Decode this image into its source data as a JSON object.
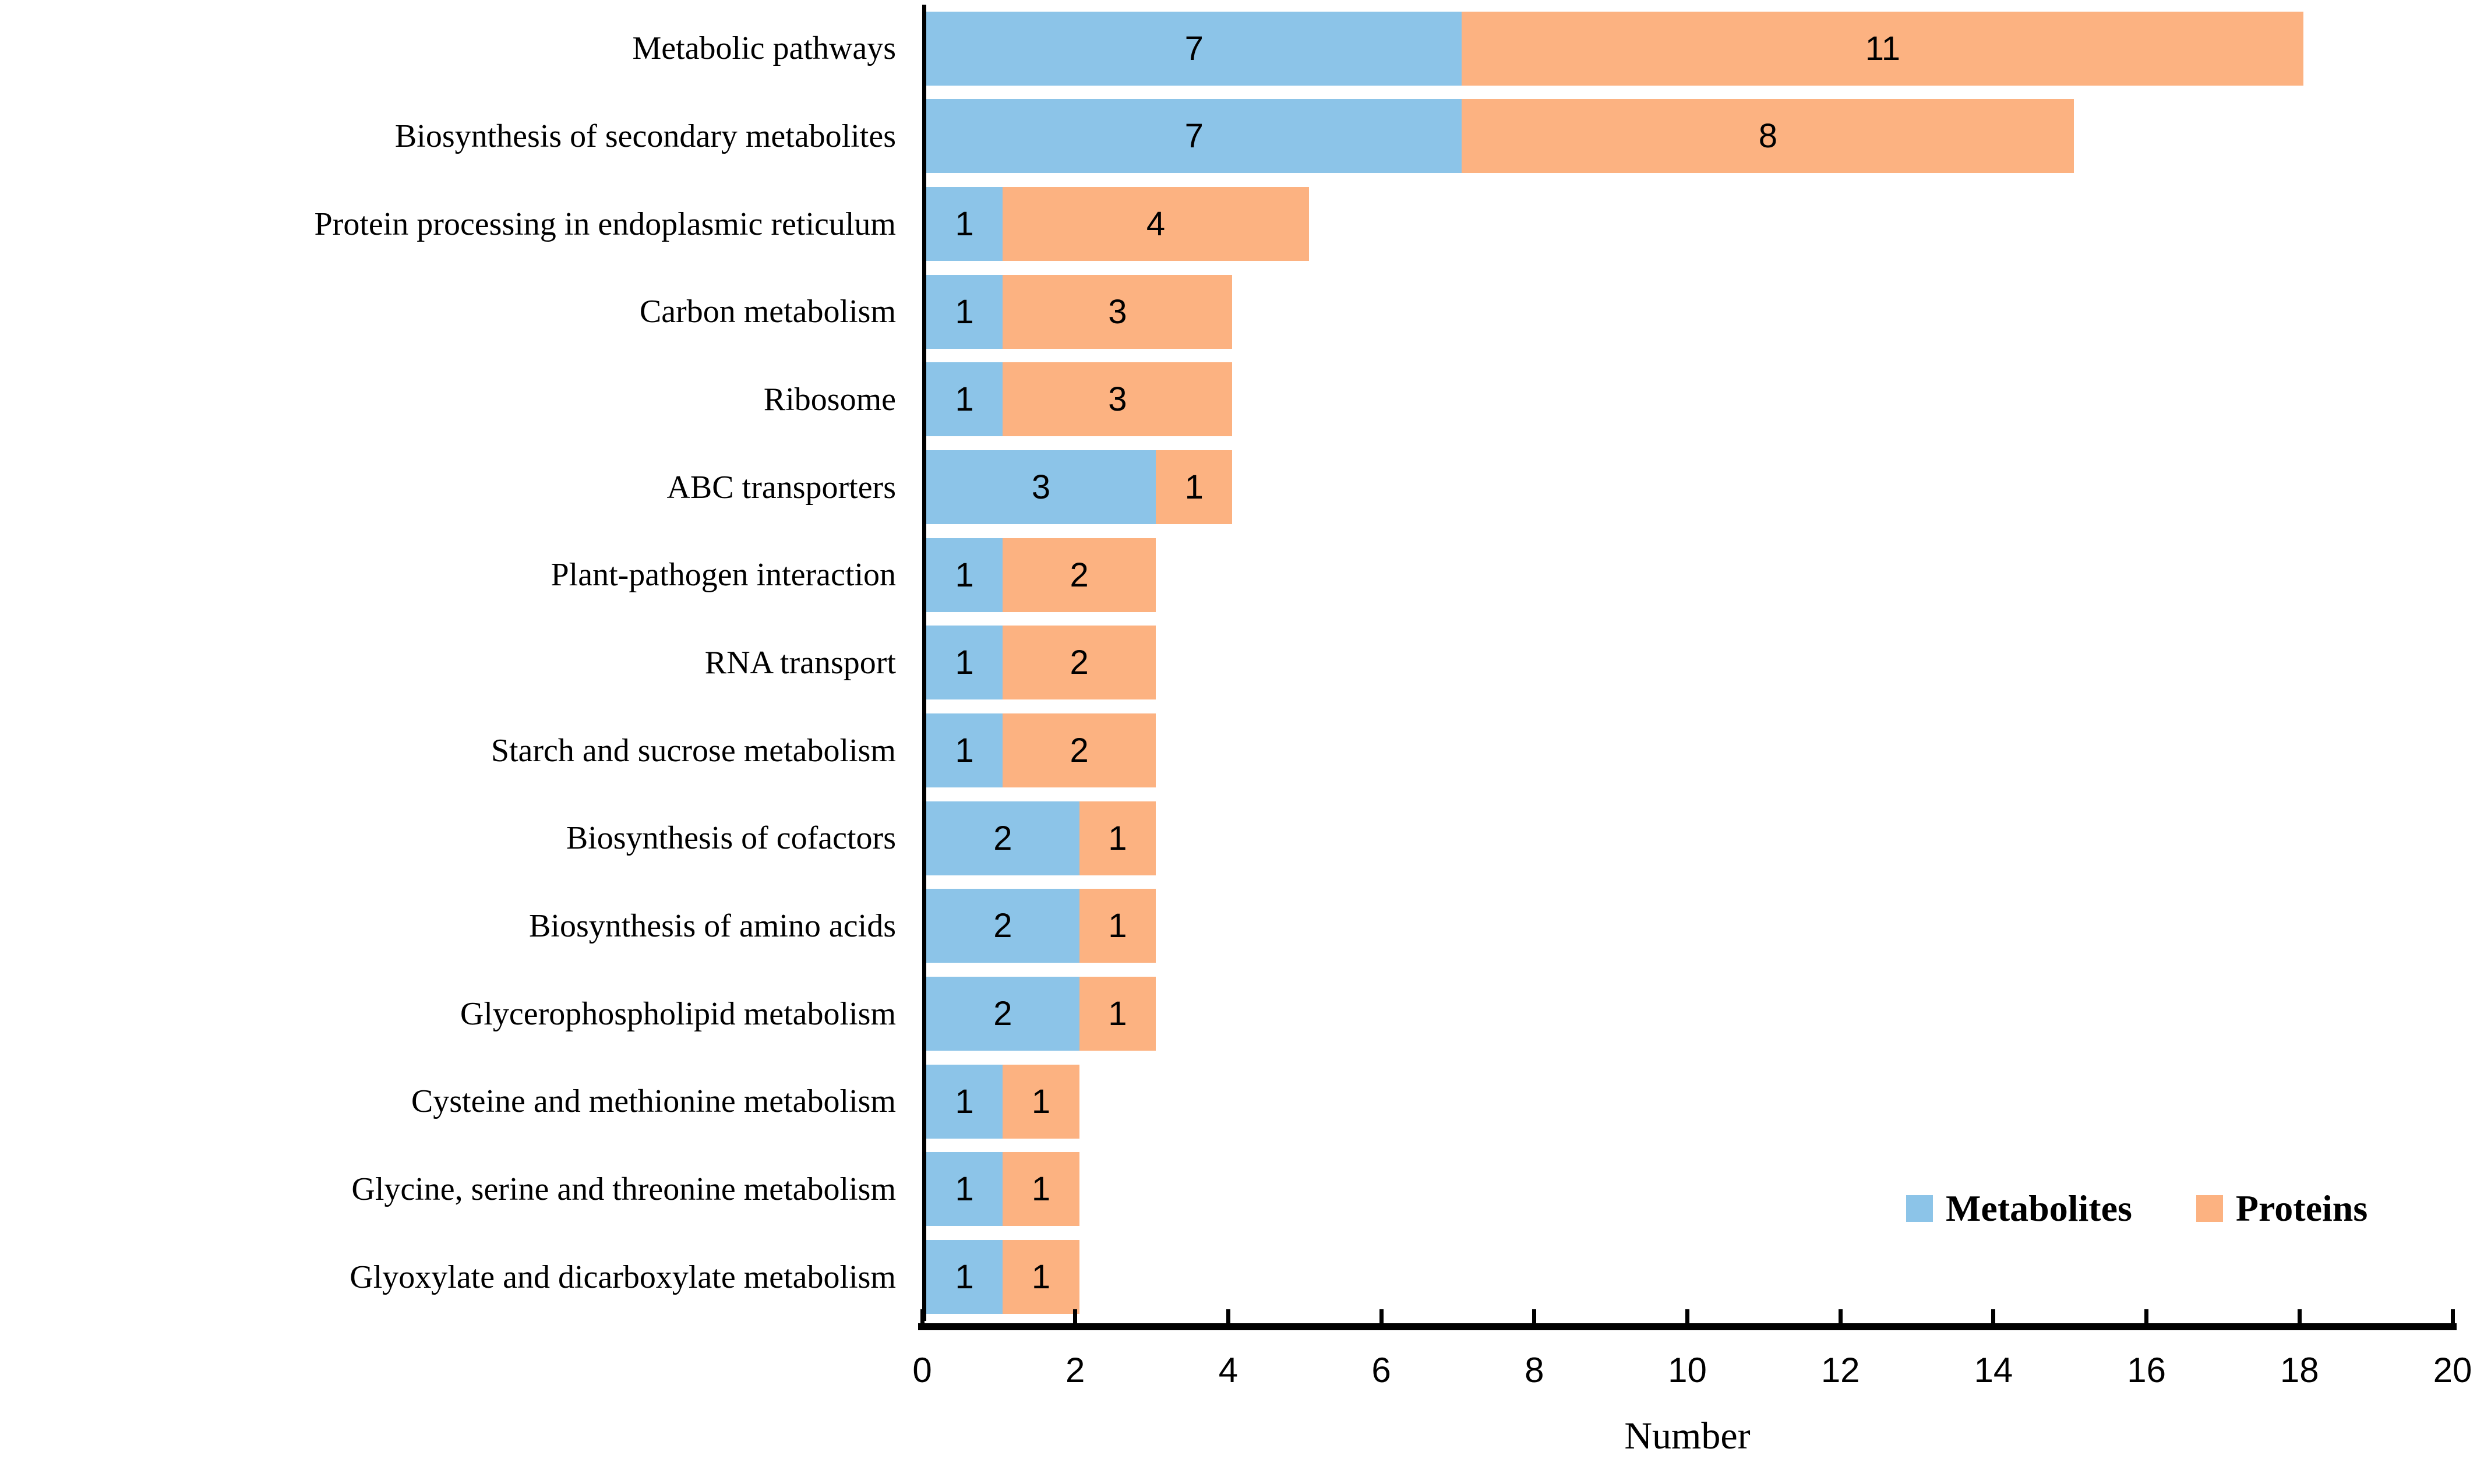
{
  "chart_data": {
    "type": "bar",
    "orientation": "horizontal",
    "stacked": true,
    "title": "",
    "xlabel": "Number",
    "ylabel": "",
    "xlim": [
      0,
      20
    ],
    "xticks": [
      0,
      2,
      4,
      6,
      8,
      10,
      12,
      14,
      16,
      18,
      20
    ],
    "grid": false,
    "legend_position": "inside-bottom-right",
    "categories": [
      "Metabolic pathways",
      "Biosynthesis of secondary metabolites",
      "Protein processing in endoplasmic reticulum",
      "Carbon metabolism",
      "Ribosome",
      "ABC transporters",
      "Plant-pathogen interaction",
      "RNA transport",
      "Starch and sucrose metabolism",
      "Biosynthesis of cofactors",
      "Biosynthesis of amino acids",
      "Glycerophospholipid metabolism",
      "Cysteine and methionine metabolism",
      "Glycine, serine and threonine metabolism",
      "Glyoxylate and dicarboxylate metabolism"
    ],
    "series": [
      {
        "name": "Metabolites",
        "color": "#8CC4E8",
        "values": [
          7,
          7,
          1,
          1,
          1,
          3,
          1,
          1,
          1,
          2,
          2,
          2,
          1,
          1,
          1
        ]
      },
      {
        "name": "Proteins",
        "color": "#FCB281",
        "values": [
          11,
          8,
          4,
          3,
          3,
          1,
          2,
          2,
          2,
          1,
          1,
          1,
          1,
          1,
          1
        ]
      }
    ],
    "axis_color": "#000000",
    "data_label_color": "#000000"
  }
}
